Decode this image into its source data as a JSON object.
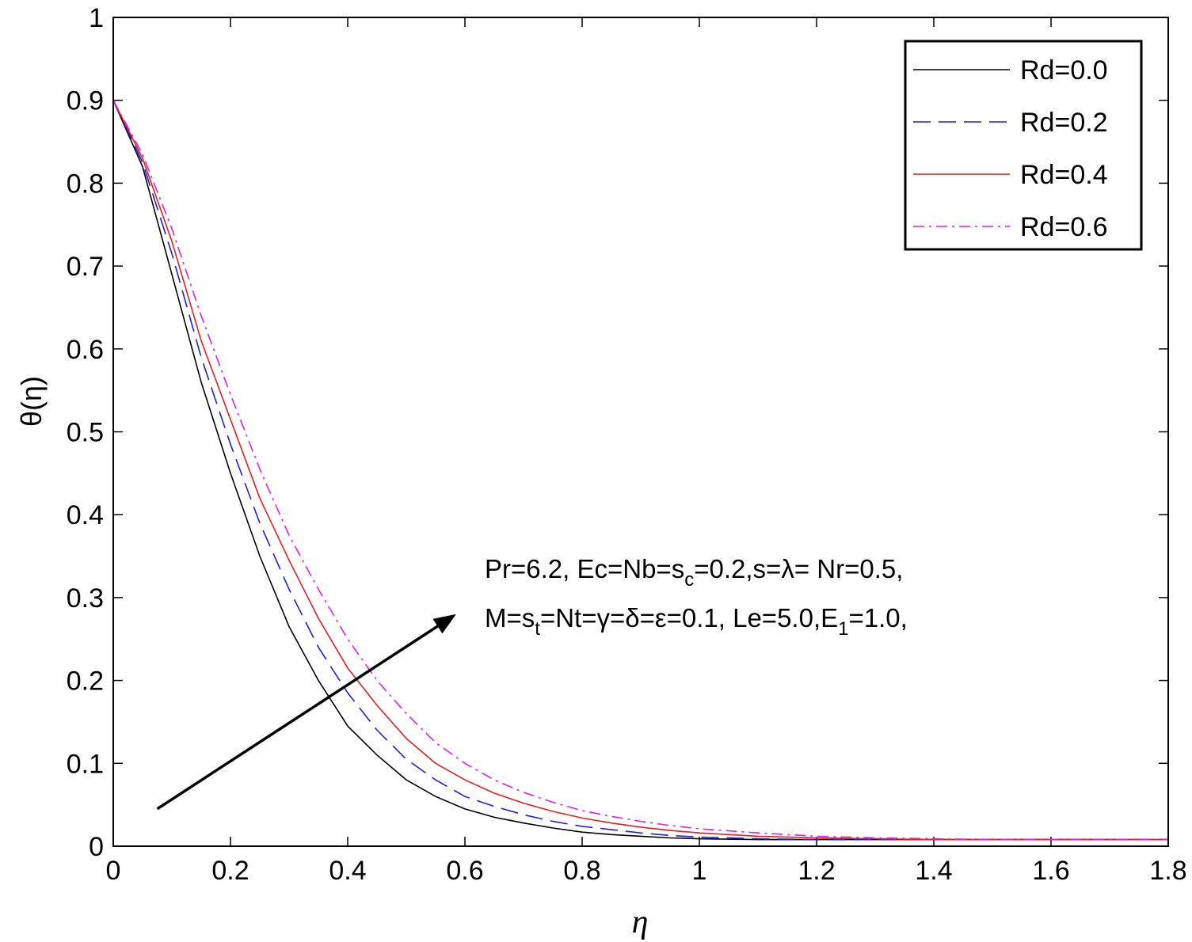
{
  "chart_data": {
    "type": "line",
    "title": "",
    "xlabel": "η",
    "ylabel": "θ(η)",
    "xlim": [
      0,
      1.8
    ],
    "ylim": [
      0,
      1
    ],
    "xticks": [
      0,
      0.2,
      0.4,
      0.6,
      0.8,
      1,
      1.2,
      1.4,
      1.6,
      1.8
    ],
    "xtick_labels": [
      "0",
      "0.2",
      "0.4",
      "0.6",
      "0.8",
      "1",
      "1.2",
      "1.4",
      "1.6",
      "1.8"
    ],
    "yticks": [
      0,
      0.1,
      0.2,
      0.3,
      0.4,
      0.5,
      0.6,
      0.7,
      0.8,
      0.9,
      1
    ],
    "ytick_labels": [
      "0",
      "0.1",
      "0.2",
      "0.3",
      "0.4",
      "0.5",
      "0.6",
      "0.7",
      "0.8",
      "0.9",
      "1"
    ],
    "grid": false,
    "legend_position": "top-right",
    "x": [
      0,
      0.05,
      0.1,
      0.15,
      0.2,
      0.25,
      0.3,
      0.35,
      0.4,
      0.45,
      0.5,
      0.55,
      0.6,
      0.65,
      0.7,
      0.75,
      0.8,
      0.85,
      0.9,
      0.95,
      1.0,
      1.1,
      1.2,
      1.3,
      1.4,
      1.5,
      1.6,
      1.7,
      1.8
    ],
    "series": [
      {
        "name": "Rd=0.0",
        "color": "#000000",
        "dash": "solid",
        "values": [
          0.9,
          0.82,
          0.69,
          0.56,
          0.45,
          0.35,
          0.265,
          0.2,
          0.145,
          0.11,
          0.08,
          0.06,
          0.045,
          0.035,
          0.028,
          0.022,
          0.017,
          0.014,
          0.012,
          0.01,
          0.009,
          0.008,
          0.008,
          0.008,
          0.008,
          0.008,
          0.008,
          0.008,
          0.008
        ]
      },
      {
        "name": "Rd=0.2",
        "color": "#1f1fd6",
        "dash": "dashed",
        "values": [
          0.9,
          0.825,
          0.715,
          0.59,
          0.485,
          0.39,
          0.31,
          0.24,
          0.185,
          0.14,
          0.105,
          0.08,
          0.06,
          0.048,
          0.038,
          0.03,
          0.024,
          0.02,
          0.016,
          0.013,
          0.011,
          0.009,
          0.008,
          0.008,
          0.008,
          0.008,
          0.008,
          0.008,
          0.008
        ]
      },
      {
        "name": "Rd=0.4",
        "color": "#e02020",
        "dash": "solid",
        "values": [
          0.9,
          0.83,
          0.73,
          0.61,
          0.515,
          0.42,
          0.345,
          0.275,
          0.215,
          0.17,
          0.13,
          0.1,
          0.08,
          0.064,
          0.052,
          0.042,
          0.034,
          0.028,
          0.023,
          0.019,
          0.016,
          0.012,
          0.01,
          0.009,
          0.008,
          0.008,
          0.008,
          0.008,
          0.008
        ]
      },
      {
        "name": "Rd=0.6",
        "color": "#e020e0",
        "dash": "dashdot",
        "values": [
          0.9,
          0.835,
          0.745,
          0.64,
          0.545,
          0.455,
          0.375,
          0.31,
          0.25,
          0.2,
          0.16,
          0.125,
          0.1,
          0.08,
          0.065,
          0.053,
          0.043,
          0.036,
          0.03,
          0.025,
          0.021,
          0.016,
          0.012,
          0.01,
          0.009,
          0.008,
          0.008,
          0.008,
          0.008
        ]
      }
    ],
    "annotation": {
      "line1": {
        "t1": "Pr=6.2, Ec=Nb=s",
        "sub1": "c",
        "t2": "=0.2,s=λ= Nr=0.5,"
      },
      "line2": {
        "t1": "M=s",
        "sub1": "t",
        "t2": "=Nt=γ=δ=ε=0.1, Le=5.0,E",
        "sub2": "1",
        "t3": "=1.0,"
      },
      "arrow": {
        "from": [
          0.075,
          0.045
        ],
        "to": [
          0.585,
          0.28
        ]
      }
    }
  }
}
